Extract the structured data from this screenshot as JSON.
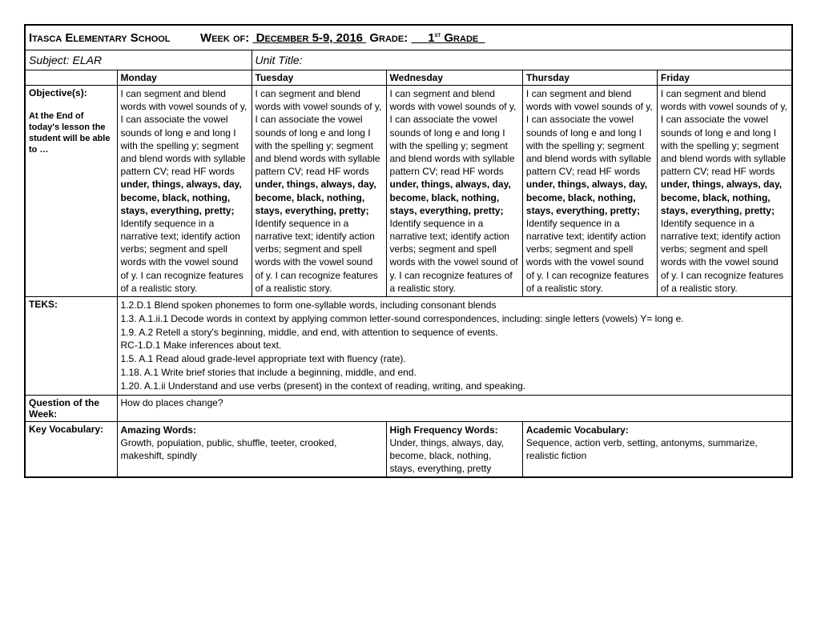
{
  "header": {
    "school": "Itasca Elementary School",
    "weekOf": "Week of:",
    "weekValue": "December 5-9, 2016",
    "gradeLabel": "Grade:",
    "gradeValue": "1",
    "gradeSuffix": "st",
    "gradeWord": "Grade"
  },
  "subject": {
    "label": "Subject:",
    "value": "ELAR",
    "unitLabel": "Unit Title:"
  },
  "days": [
    "Monday",
    "Tuesday",
    "Wednesday",
    "Thursday",
    "Friday"
  ],
  "objectives": {
    "label": "Objective(s):",
    "subLabel": "At the End of today's lesson the student will be able to …",
    "monday": {
      "pre": "I can segment and blend words with vowel sounds of y, I can associate the vowel sounds of long e and long I with the spelling y; segment and blend words with syllable pattern CV; read HF words ",
      "bold": "under, things, always, day, become, black, nothing, stays, everything, pretty;",
      "post": " Identify sequence in a narrative text; identify action verbs; segment and spell words with the vowel sound of y. I can recognize features of a realistic story."
    },
    "tuesday": {
      "pre": "I can segment and blend words with vowel sounds of y, I can associate the vowel sounds of long e and long I with the spelling y; segment and blend words with syllable pattern CV; read HF words ",
      "bold": "under, things, always, day, become, black, nothing, stays, everything, pretty;",
      "post": " Identify sequence in a narrative text; identify action verbs; segment and spell words with the vowel sound of y. I can recognize features of a realistic story."
    },
    "wednesday": {
      "pre": "I can segment and blend words with vowel sounds of y, I can associate the vowel sounds of long e and long I with the spelling y; segment and blend words with syllable pattern CV; read HF words ",
      "bold": "under, things, always, day, become, black, nothing, stays, everything, pretty;",
      "post": " Identify sequence in a narrative text; identify action verbs; segment and spell words with the vowel sound of y. I can recognize features of a realistic story."
    },
    "thursday": {
      "pre": "I can segment and blend words with vowel sounds of y, I can associate the vowel sounds of long e and long I with the spelling y; segment and blend words with syllable pattern CV; read HF words ",
      "bold": "under, things, always, day, become, black, nothing, stays, everything, pretty;",
      "post": " Identify sequence in a narrative text; identify action verbs; segment and spell words with the vowel sound of y. I can recognize features of a realistic story."
    },
    "friday": {
      "pre": "I can segment and blend words with vowel sounds of y, I can associate the vowel sounds of long e and long I with the spelling y; segment and blend words with syllable pattern CV; read HF words ",
      "bold": "under, things, always, day, become, black, nothing, stays, everything, pretty;",
      "post": " Identify sequence in a narrative text; identify action verbs; segment and spell words with the vowel sound of y. I can recognize features of a realistic story."
    }
  },
  "teks": {
    "label": "TEKS:",
    "lines": [
      "1.2.D.1 Blend spoken phonemes to form one-syllable words, including consonant blends",
      "1.3. A.1.ii.1 Decode words in context by applying common letter-sound correspondences, including: single letters (vowels) Y= long e.",
      "1.9. A.2 Retell a story's beginning, middle, and end, with attention to sequence of events.",
      "RC-1.D.1 Make inferences about text.",
      "1.5. A.1 Read aloud grade-level appropriate text with fluency (rate).",
      "1.18. A.1 Write brief stories that include a beginning, middle, and end.",
      "1.20. A.1.ii Understand and use verbs (present) in the context of reading, writing, and speaking."
    ]
  },
  "question": {
    "label": "Question of the Week:",
    "value": "How do places change?"
  },
  "vocab": {
    "label": "Key Vocabulary:",
    "amazing": {
      "heading": "Amazing Words:",
      "text": "Growth, population, public, shuffle, teeter, crooked, makeshift, spindly"
    },
    "hf": {
      "heading": "High Frequency Words:",
      "text": "Under, things, always, day, become, black, nothing, stays, everything, pretty"
    },
    "academic": {
      "heading": "Academic Vocabulary:",
      "text": "Sequence, action verb, setting, antonyms, summarize, realistic fiction"
    }
  }
}
